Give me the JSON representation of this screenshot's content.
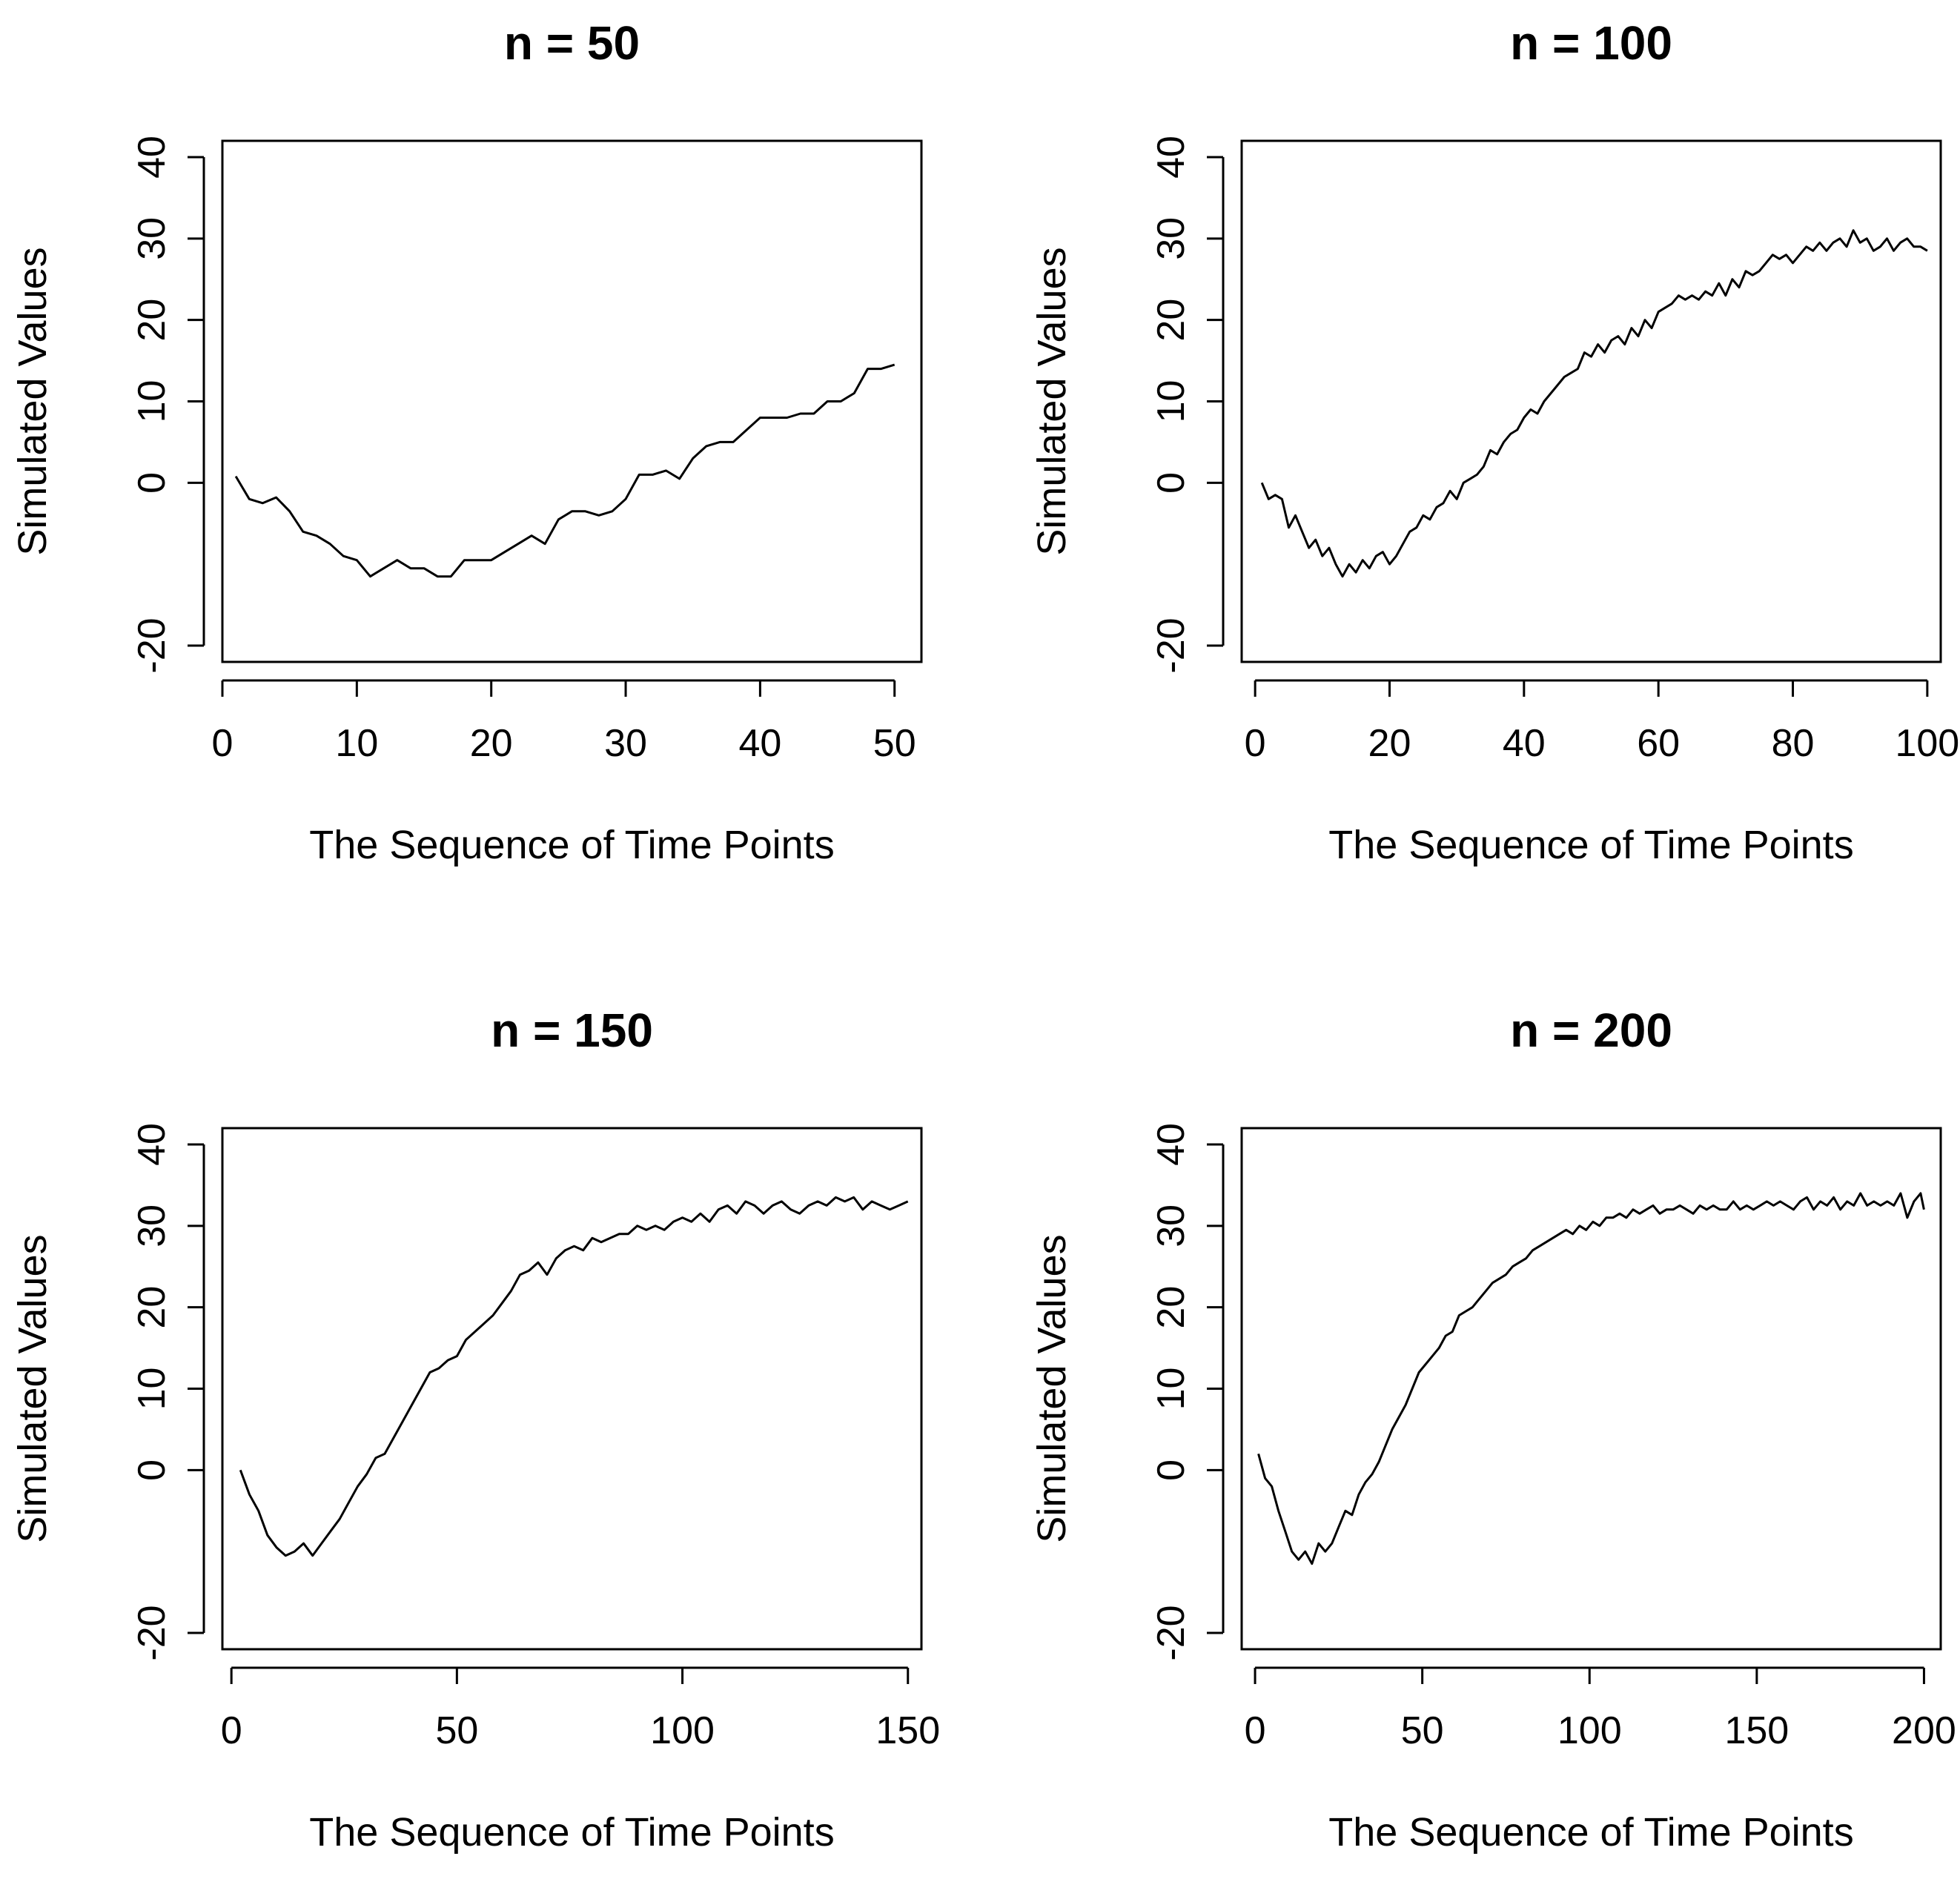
{
  "chart_data": [
    {
      "type": "line",
      "title": "n = 50",
      "xlabel": "The Sequence of Time Points",
      "ylabel": "Simulated Values",
      "xlim": [
        0,
        52
      ],
      "ylim": [
        -22,
        42
      ],
      "xticks": [
        0,
        10,
        20,
        30,
        40,
        50
      ],
      "yticks": [
        -20,
        0,
        10,
        20,
        30,
        40
      ],
      "ytick_labels": [
        "-20",
        "0",
        "10",
        "20",
        "30",
        "40"
      ],
      "series": [
        {
          "name": "Simulated Values",
          "x": [
            1,
            2,
            3,
            4,
            5,
            6,
            7,
            8,
            9,
            10,
            11,
            12,
            13,
            14,
            15,
            16,
            17,
            18,
            19,
            20,
            21,
            22,
            23,
            24,
            25,
            26,
            27,
            28,
            29,
            30,
            31,
            32,
            33,
            34,
            35,
            36,
            37,
            38,
            39,
            40,
            41,
            42,
            43,
            44,
            45,
            46,
            47,
            48,
            49,
            50
          ],
          "y": [
            0.8,
            -2,
            -2.5,
            -1.8,
            -3.5,
            -6,
            -6.5,
            -7.5,
            -9,
            -9.5,
            -11.5,
            -10.5,
            -9.5,
            -10.5,
            -10.5,
            -11.5,
            -11.5,
            -9.5,
            -9.5,
            -9.5,
            -8.5,
            -7.5,
            -6.5,
            -7.5,
            -4.5,
            -3.5,
            -3.5,
            -4,
            -3.5,
            -2,
            1,
            1,
            1.5,
            0.5,
            3,
            4.5,
            5,
            5,
            6.5,
            8,
            8,
            8,
            8.5,
            8.5,
            10,
            10,
            11,
            14,
            14,
            14.5
          ]
        }
      ]
    },
    {
      "type": "line",
      "title": "n = 100",
      "xlabel": "The Sequence of Time Points",
      "ylabel": "Simulated Values",
      "xlim": [
        -2,
        102
      ],
      "ylim": [
        -22,
        42
      ],
      "xticks": [
        0,
        20,
        40,
        60,
        80,
        100
      ],
      "yticks": [
        -20,
        0,
        10,
        20,
        30,
        40
      ],
      "ytick_labels": [
        "-20",
        "0",
        "10",
        "20",
        "30",
        "40"
      ],
      "series": [
        {
          "name": "Simulated Values",
          "x": [
            1,
            2,
            3,
            4,
            5,
            6,
            7,
            8,
            9,
            10,
            11,
            12,
            13,
            14,
            15,
            16,
            17,
            18,
            19,
            20,
            21,
            22,
            23,
            24,
            25,
            26,
            27,
            28,
            29,
            30,
            31,
            32,
            33,
            34,
            35,
            36,
            37,
            38,
            39,
            40,
            41,
            42,
            43,
            44,
            45,
            46,
            47,
            48,
            49,
            50,
            51,
            52,
            53,
            54,
            55,
            56,
            57,
            58,
            59,
            60,
            61,
            62,
            63,
            64,
            65,
            66,
            67,
            68,
            69,
            70,
            71,
            72,
            73,
            74,
            75,
            76,
            77,
            78,
            79,
            80,
            81,
            82,
            83,
            84,
            85,
            86,
            87,
            88,
            89,
            90,
            91,
            92,
            93,
            94,
            95,
            96,
            97,
            98,
            99,
            100
          ],
          "y": [
            0,
            -2,
            -1.5,
            -2,
            -5.5,
            -4,
            -6,
            -8,
            -7,
            -9,
            -8,
            -10,
            -11.5,
            -10,
            -11,
            -9.5,
            -10.5,
            -9,
            -8.5,
            -10,
            -9,
            -7.5,
            -6,
            -5.5,
            -4,
            -4.5,
            -3,
            -2.5,
            -1,
            -2,
            0,
            0.5,
            1,
            2,
            4,
            3.5,
            5,
            6,
            6.5,
            8,
            9,
            8.5,
            10,
            11,
            12,
            13,
            13.5,
            14,
            16,
            15.5,
            17,
            16,
            17.5,
            18,
            17,
            19,
            18,
            20,
            19,
            21,
            21.5,
            22,
            23,
            22.5,
            23,
            22.5,
            23.5,
            23,
            24.5,
            23,
            25,
            24,
            26,
            25.5,
            26,
            27,
            28,
            27.5,
            28,
            27,
            28,
            29,
            28.5,
            29.5,
            28.5,
            29.5,
            30,
            29,
            31,
            29.5,
            30,
            28.5,
            29,
            30,
            28.5,
            29.5,
            30,
            29,
            29,
            28.5
          ]
        }
      ]
    },
    {
      "type": "line",
      "title": "n = 150",
      "xlabel": "The Sequence of Time Points",
      "ylabel": "Simulated Values",
      "xlim": [
        -2,
        153
      ],
      "ylim": [
        -22,
        42
      ],
      "xticks": [
        0,
        50,
        100,
        150
      ],
      "yticks": [
        -20,
        0,
        10,
        20,
        30,
        40
      ],
      "ytick_labels": [
        "-20",
        "0",
        "10",
        "20",
        "30",
        "40"
      ],
      "series": [
        {
          "name": "Simulated Values",
          "x": [
            2,
            4,
            6,
            8,
            10,
            12,
            14,
            16,
            18,
            20,
            22,
            24,
            26,
            28,
            30,
            32,
            34,
            36,
            38,
            40,
            42,
            44,
            46,
            48,
            50,
            52,
            54,
            56,
            58,
            60,
            62,
            64,
            66,
            68,
            70,
            72,
            74,
            76,
            78,
            80,
            82,
            84,
            86,
            88,
            90,
            92,
            94,
            96,
            98,
            100,
            102,
            104,
            106,
            108,
            110,
            112,
            114,
            116,
            118,
            120,
            122,
            124,
            126,
            128,
            130,
            132,
            134,
            136,
            138,
            140,
            142,
            144,
            146,
            148,
            150
          ],
          "y": [
            0,
            -3,
            -5,
            -8,
            -9.5,
            -10.5,
            -10,
            -9,
            -10.5,
            -9,
            -7.5,
            -6,
            -4,
            -2,
            -0.5,
            1.5,
            2,
            4,
            6,
            8,
            10,
            12,
            12.5,
            13.5,
            14,
            16,
            17,
            18,
            19,
            20.5,
            22,
            24,
            24.5,
            25.5,
            24,
            26,
            27,
            27.5,
            27,
            28.5,
            28,
            28.5,
            29,
            29,
            30,
            29.5,
            30,
            29.5,
            30.5,
            31,
            30.5,
            31.5,
            30.5,
            32,
            32.5,
            31.5,
            33,
            32.5,
            31.5,
            32.5,
            33,
            32,
            31.5,
            32.5,
            33,
            32.5,
            33.5,
            33,
            33.5,
            32,
            33,
            32.5,
            32,
            32.5,
            33
          ]
        }
      ]
    },
    {
      "type": "line",
      "title": "n = 200",
      "xlabel": "The Sequence of Time Points",
      "ylabel": "Simulated Values",
      "xlim": [
        -4,
        205
      ],
      "ylim": [
        -22,
        42
      ],
      "xticks": [
        0,
        50,
        100,
        150,
        200
      ],
      "yticks": [
        -20,
        0,
        10,
        20,
        30,
        40
      ],
      "ytick_labels": [
        "-20",
        "0",
        "10",
        "20",
        "30",
        "40"
      ],
      "series": [
        {
          "name": "Simulated Values",
          "x": [
            1,
            3,
            5,
            7,
            9,
            11,
            13,
            15,
            17,
            19,
            21,
            23,
            25,
            27,
            29,
            31,
            33,
            35,
            37,
            39,
            41,
            43,
            45,
            47,
            49,
            51,
            53,
            55,
            57,
            59,
            61,
            63,
            65,
            67,
            69,
            71,
            73,
            75,
            77,
            79,
            81,
            83,
            85,
            87,
            89,
            91,
            93,
            95,
            97,
            99,
            101,
            103,
            105,
            107,
            109,
            111,
            113,
            115,
            117,
            119,
            121,
            123,
            125,
            127,
            129,
            131,
            133,
            135,
            137,
            139,
            141,
            143,
            145,
            147,
            149,
            151,
            153,
            155,
            157,
            159,
            161,
            163,
            165,
            167,
            169,
            171,
            173,
            175,
            177,
            179,
            181,
            183,
            185,
            187,
            189,
            191,
            193,
            195,
            197,
            199,
            200
          ],
          "y": [
            2,
            -1,
            -2,
            -5,
            -7.5,
            -10,
            -11,
            -10,
            -11.5,
            -9,
            -10,
            -9,
            -7,
            -5,
            -5.5,
            -3,
            -1.5,
            -0.5,
            1,
            3,
            5,
            6.5,
            8,
            10,
            12,
            13,
            14,
            15,
            16.5,
            17,
            19,
            19.5,
            20,
            21,
            22,
            23,
            23.5,
            24,
            25,
            25.5,
            26,
            27,
            27.5,
            28,
            28.5,
            29,
            29.5,
            29,
            30,
            29.5,
            30.5,
            30,
            31,
            31,
            31.5,
            31,
            32,
            31.5,
            32,
            32.5,
            31.5,
            32,
            32,
            32.5,
            32,
            31.5,
            32.5,
            32,
            32.5,
            32,
            32,
            33,
            32,
            32.5,
            32,
            32.5,
            33,
            32.5,
            33,
            32.5,
            32,
            33,
            33.5,
            32,
            33,
            32.5,
            33.5,
            32,
            33,
            32.5,
            34,
            32.5,
            33,
            32.5,
            33,
            32.5,
            34,
            31,
            33,
            34,
            32
          ]
        }
      ]
    }
  ]
}
